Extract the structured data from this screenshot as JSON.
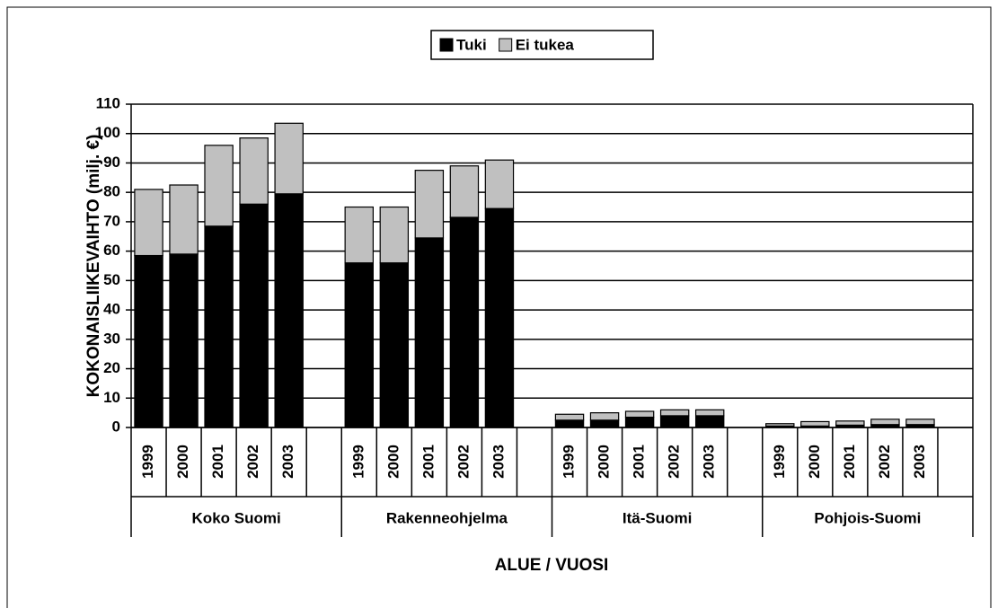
{
  "chart_data": {
    "type": "bar",
    "stacked": true,
    "y_label": "KOKONAISLIIKEVAIHTO (milj. €)",
    "x_label": "ALUE / VUOSI",
    "groups": [
      "Koko Suomi",
      "Rakenneohjelma",
      "Itä-Suomi",
      "Pohjois-Suomi"
    ],
    "categories": [
      "1999",
      "2000",
      "2001",
      "2002",
      "2003",
      "1999",
      "2000",
      "2001",
      "2002",
      "2003",
      "1999",
      "2000",
      "2001",
      "2002",
      "2003",
      "1999",
      "2000",
      "2001",
      "2002",
      "2003"
    ],
    "series": [
      {
        "name": "Tuki",
        "color": "#000000",
        "values": [
          58.5,
          59,
          68.5,
          76,
          79.5,
          56,
          56,
          64.5,
          71.5,
          74.5,
          2.5,
          2.5,
          3.5,
          4,
          4,
          0.5,
          0.5,
          0.8,
          1,
          1
        ]
      },
      {
        "name": "Ei tukea",
        "color": "#c0c0c0",
        "values": [
          22.5,
          23.5,
          27.5,
          22.5,
          24,
          19,
          19,
          23,
          17.5,
          16.5,
          2,
          2.5,
          2,
          2,
          2,
          0.8,
          1.5,
          1.4,
          1.8,
          1.8
        ]
      }
    ],
    "ylim": [
      0,
      110
    ],
    "yticks": [
      0,
      10,
      20,
      30,
      40,
      50,
      60,
      70,
      80,
      90,
      100,
      110
    ],
    "grid": true,
    "legend": "top"
  }
}
